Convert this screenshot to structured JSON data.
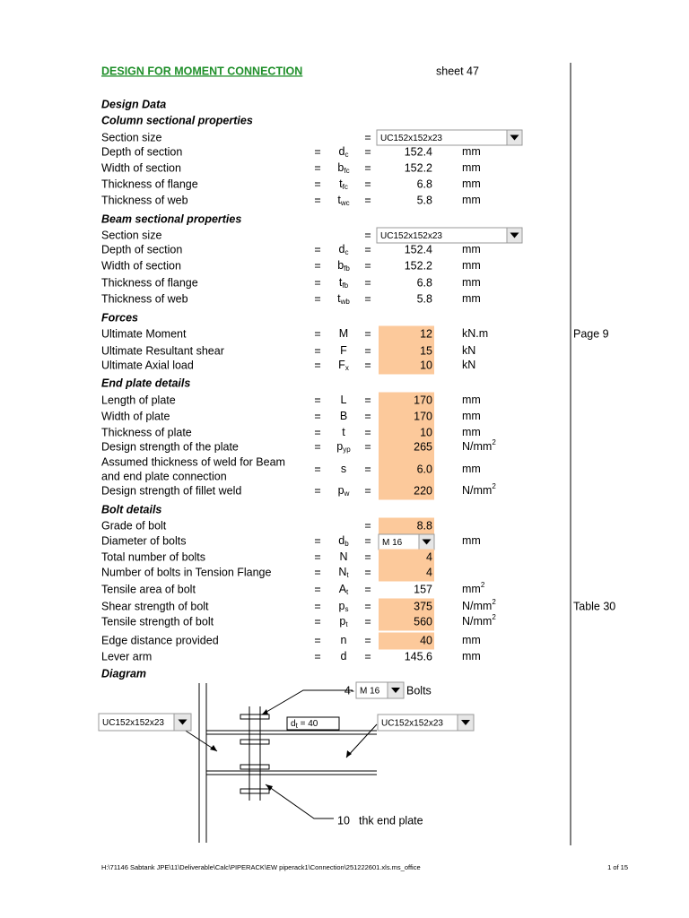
{
  "header": {
    "title": "DESIGN FOR MOMENT CONNECTION",
    "sheet": "sheet 47"
  },
  "design_data": "Design Data",
  "equals_sign": "=",
  "groups": [
    {
      "heading": "Column sectional properties",
      "rows": [
        {
          "label": "Section size",
          "select": "UC152x152x23"
        },
        {
          "label": "Depth of section",
          "symbol": "d",
          "symbol_sub": "c",
          "value": "152.4",
          "unit": "mm"
        },
        {
          "label": "Width of section",
          "symbol": "b",
          "symbol_sub": "fc",
          "value": "152.2",
          "unit": "mm"
        },
        {
          "label": "Thickness of flange",
          "symbol": "t",
          "symbol_sub": "fc",
          "value": "6.8",
          "unit": "mm"
        },
        {
          "label": "Thickness of web",
          "symbol": "t",
          "symbol_sub": "wc",
          "value": "5.8",
          "unit": "mm"
        }
      ]
    },
    {
      "heading": "Beam sectional properties",
      "rows": [
        {
          "label": "Section size",
          "select": "UC152x152x23"
        },
        {
          "label": "Depth of section",
          "symbol": "d",
          "symbol_sub": "c",
          "value": "152.4",
          "unit": "mm"
        },
        {
          "label": "Width of section",
          "symbol": "b",
          "symbol_sub": "fb",
          "value": "152.2",
          "unit": "mm"
        },
        {
          "label": "Thickness of flange",
          "symbol": "t",
          "symbol_sub": "fb",
          "value": "6.8",
          "unit": "mm"
        },
        {
          "label": "Thickness of web",
          "symbol": "t",
          "symbol_sub": "wb",
          "value": "5.8",
          "unit": "mm"
        }
      ]
    },
    {
      "heading": "Forces",
      "rows": [
        {
          "label": "Ultimate Moment",
          "symbol": "M",
          "value": "12",
          "unit": "kN.m",
          "input": true,
          "note": "Page 9"
        },
        {
          "label": "Ultimate Resultant shear",
          "symbol": "F",
          "value": "15",
          "unit": "kN",
          "input": true
        },
        {
          "label": "Ultimate Axial load",
          "symbol": "F",
          "symbol_sub": "x",
          "value": "10",
          "unit": "kN",
          "input": true
        }
      ]
    },
    {
      "heading": "End plate details",
      "rows": [
        {
          "label": "Length of plate",
          "symbol": "L",
          "value": "170",
          "unit": "mm",
          "input": true
        },
        {
          "label": "Width of plate",
          "symbol": "B",
          "value": "170",
          "unit": "mm",
          "input": true
        },
        {
          "label": "Thickness of plate",
          "symbol": "t",
          "value": "10",
          "unit": "mm",
          "input": true
        },
        {
          "label": "Design strength of the plate",
          "symbol": "p",
          "symbol_sub": "yp",
          "value": "265",
          "unit": "N/mm",
          "unit_sup": "2",
          "input": true
        },
        {
          "label": [
            "Assumed  thickness  of  weld  for  Beam",
            "and end plate connection"
          ],
          "symbol": "s",
          "value": "6.0",
          "unit": "mm",
          "input": true
        },
        {
          "label": "Design strength of fillet weld",
          "symbol": "p",
          "symbol_sub": "w",
          "value": "220",
          "unit": "N/mm",
          "unit_sup": "2",
          "input": true
        }
      ]
    },
    {
      "heading": "Bolt details",
      "rows": [
        {
          "label": "Grade of bolt",
          "value": "8.8",
          "input": true
        },
        {
          "label": "Diameter of bolts",
          "symbol": "d",
          "symbol_sub": "b",
          "select": "M 16",
          "unit": "mm",
          "input": true
        },
        {
          "label": "Total number of bolts",
          "symbol": "N",
          "value": "4",
          "input": true
        },
        {
          "label": "Number of bolts in Tension Flange",
          "symbol": "N",
          "symbol_sub": "t",
          "value": "4",
          "input": true
        },
        {
          "label": "Tensile area of bolt",
          "symbol": "A",
          "symbol_sub": "t",
          "value": "157",
          "unit": "mm",
          "unit_sup": "2"
        },
        {
          "label": "Shear strength of bolt",
          "symbol": "p",
          "symbol_sub": "s",
          "value": "375",
          "unit": "N/mm",
          "unit_sup": "2",
          "input": true,
          "note": "Table 30"
        },
        {
          "label": "Tensile strength of bolt",
          "symbol": "p",
          "symbol_sub": "t",
          "value": "560",
          "unit": "N/mm",
          "unit_sup": "2",
          "input": true
        },
        {
          "label": "Edge distance provided",
          "symbol": "n",
          "value": "40",
          "unit": "mm",
          "input": true
        },
        {
          "label": "Lever arm",
          "symbol": "d",
          "value": "145.6",
          "unit": "mm"
        }
      ]
    }
  ],
  "diagram": {
    "heading": "Diagram",
    "bolt_count": "4-",
    "bolt_select": "M 16",
    "bolts_label": "Bolts",
    "left_select": "UC152x152x23",
    "right_select": "UC152x152x23",
    "dt_symbol": "d",
    "dt_sub": "t",
    "dt_value": " = 40",
    "plate_thk": "10",
    "plate_label": "thk end plate"
  },
  "footer": {
    "path": "H:\\71146 Sabtank JPE\\11\\Deliverable\\Calc\\PIPERACK\\EW piperack1\\Connection\\251222601.xls.ms_office",
    "page": "1 of 15"
  }
}
